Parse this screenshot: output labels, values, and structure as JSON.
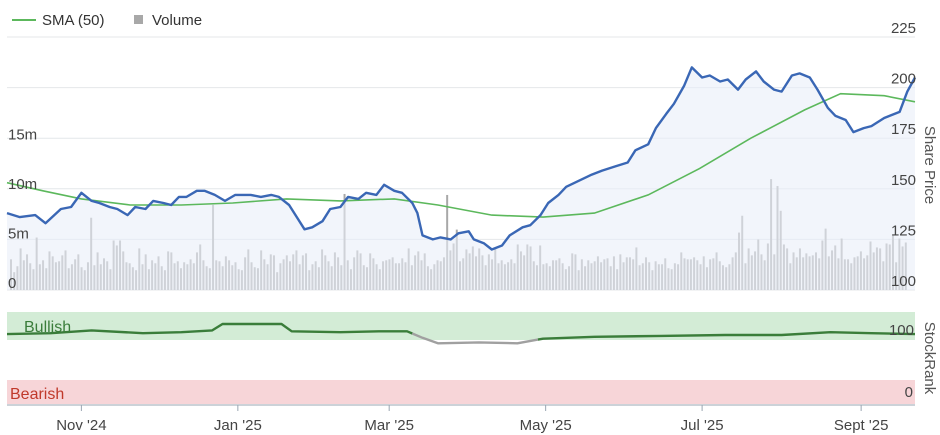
{
  "chart_data": {
    "type": "line",
    "legend": [
      {
        "name": "SMA (50)",
        "color": "#5cb85c",
        "symbol": "line"
      },
      {
        "name": "Volume",
        "color": "#a8a8a8",
        "symbol": "square"
      }
    ],
    "legend_position": "top-left",
    "grid": true,
    "x_range": [
      "2024-10-03",
      "2025-09-22"
    ],
    "x_ticks": [
      {
        "date": "2024-11-01",
        "label": "Nov '24"
      },
      {
        "date": "2025-01-01",
        "label": "Jan '25"
      },
      {
        "date": "2025-03-01",
        "label": "Mar '25"
      },
      {
        "date": "2025-05-01",
        "label": "May '25"
      },
      {
        "date": "2025-07-01",
        "label": "Jul '25"
      },
      {
        "date": "2025-09-01",
        "label": "Sept '25"
      }
    ],
    "price_axis": {
      "title": "Share Price",
      "ylim": [
        100,
        225
      ],
      "ticks": [
        "100",
        "125",
        "150",
        "175",
        "200",
        "225"
      ],
      "side": "right"
    },
    "volume_axis": {
      "ticks": [
        {
          "value": 0,
          "label": "0"
        },
        {
          "value": 5,
          "label": "5m"
        },
        {
          "value": 10,
          "label": "10m"
        },
        {
          "value": 15,
          "label": "15m"
        }
      ],
      "max": 26,
      "side": "left",
      "unit": "m"
    },
    "series": [
      {
        "name": "Share Price",
        "color": "#3a67b5",
        "points": [
          [
            "2024-10-03",
            138
          ],
          [
            "2024-10-08",
            136
          ],
          [
            "2024-10-14",
            137
          ],
          [
            "2024-10-18",
            133
          ],
          [
            "2024-10-24",
            140
          ],
          [
            "2024-10-28",
            141
          ],
          [
            "2024-11-01",
            148
          ],
          [
            "2024-11-05",
            144
          ],
          [
            "2024-11-08",
            143
          ],
          [
            "2024-11-12",
            141
          ],
          [
            "2024-11-15",
            140
          ],
          [
            "2024-11-19",
            137
          ],
          [
            "2024-11-22",
            141
          ],
          [
            "2024-11-26",
            140
          ],
          [
            "2024-11-29",
            144
          ],
          [
            "2024-12-03",
            143
          ],
          [
            "2024-12-06",
            142
          ],
          [
            "2024-12-09",
            146
          ],
          [
            "2024-12-12",
            146
          ],
          [
            "2024-12-16",
            149
          ],
          [
            "2024-12-19",
            149
          ],
          [
            "2024-12-23",
            147
          ],
          [
            "2024-12-27",
            144
          ],
          [
            "2024-12-31",
            147
          ],
          [
            "2025-01-06",
            147
          ],
          [
            "2025-01-10",
            146
          ],
          [
            "2025-01-14",
            147
          ],
          [
            "2025-01-17",
            146
          ],
          [
            "2025-01-21",
            142
          ],
          [
            "2025-01-24",
            136
          ],
          [
            "2025-01-27",
            130
          ],
          [
            "2025-01-30",
            131
          ],
          [
            "2025-02-03",
            134
          ],
          [
            "2025-02-06",
            140
          ],
          [
            "2025-02-10",
            141
          ],
          [
            "2025-02-13",
            146
          ],
          [
            "2025-02-17",
            145
          ],
          [
            "2025-02-20",
            148
          ],
          [
            "2025-02-24",
            147
          ],
          [
            "2025-02-27",
            152
          ],
          [
            "2025-03-03",
            149
          ],
          [
            "2025-03-06",
            148
          ],
          [
            "2025-03-10",
            143
          ],
          [
            "2025-03-12",
            138
          ],
          [
            "2025-03-14",
            127
          ],
          [
            "2025-03-18",
            125
          ],
          [
            "2025-03-21",
            126
          ],
          [
            "2025-03-25",
            125
          ],
          [
            "2025-03-28",
            128
          ],
          [
            "2025-04-01",
            129
          ],
          [
            "2025-04-03",
            125
          ],
          [
            "2025-04-07",
            123
          ],
          [
            "2025-04-10",
            120
          ],
          [
            "2025-04-14",
            122
          ],
          [
            "2025-04-17",
            127
          ],
          [
            "2025-04-22",
            131
          ],
          [
            "2025-04-25",
            132
          ],
          [
            "2025-04-29",
            137
          ],
          [
            "2025-05-02",
            143
          ],
          [
            "2025-05-06",
            147
          ],
          [
            "2025-05-09",
            151
          ],
          [
            "2025-05-14",
            154
          ],
          [
            "2025-05-19",
            157
          ],
          [
            "2025-05-23",
            159
          ],
          [
            "2025-05-28",
            161
          ],
          [
            "2025-06-02",
            163
          ],
          [
            "2025-06-05",
            169
          ],
          [
            "2025-06-10",
            172
          ],
          [
            "2025-06-13",
            180
          ],
          [
            "2025-06-17",
            187
          ],
          [
            "2025-06-20",
            192
          ],
          [
            "2025-06-24",
            201
          ],
          [
            "2025-06-27",
            210
          ],
          [
            "2025-07-01",
            205
          ],
          [
            "2025-07-04",
            206
          ],
          [
            "2025-07-08",
            203
          ],
          [
            "2025-07-11",
            204
          ],
          [
            "2025-07-15",
            199
          ],
          [
            "2025-07-18",
            204
          ],
          [
            "2025-07-22",
            208
          ],
          [
            "2025-07-25",
            203
          ],
          [
            "2025-07-29",
            199
          ],
          [
            "2025-08-01",
            198
          ],
          [
            "2025-08-05",
            206
          ],
          [
            "2025-08-08",
            207
          ],
          [
            "2025-08-12",
            205
          ],
          [
            "2025-08-15",
            199
          ],
          [
            "2025-08-19",
            190
          ],
          [
            "2025-08-22",
            186
          ],
          [
            "2025-08-26",
            184
          ],
          [
            "2025-08-29",
            178
          ],
          [
            "2025-09-02",
            180
          ],
          [
            "2025-09-05",
            181
          ],
          [
            "2025-09-10",
            185
          ],
          [
            "2025-09-16",
            188
          ],
          [
            "2025-09-19",
            198
          ],
          [
            "2025-09-22",
            205
          ]
        ]
      },
      {
        "name": "SMA (50)",
        "color": "#5cb85c",
        "points": [
          [
            "2024-10-03",
            153
          ],
          [
            "2024-10-17",
            149
          ],
          [
            "2024-11-01",
            145
          ],
          [
            "2024-11-20",
            142
          ],
          [
            "2024-12-10",
            142
          ],
          [
            "2024-12-30",
            143
          ],
          [
            "2025-01-20",
            145
          ],
          [
            "2025-02-10",
            144
          ],
          [
            "2025-03-03",
            145
          ],
          [
            "2025-03-20",
            142
          ],
          [
            "2025-04-10",
            137
          ],
          [
            "2025-04-30",
            136
          ],
          [
            "2025-05-20",
            138
          ],
          [
            "2025-06-10",
            147
          ],
          [
            "2025-06-30",
            160
          ],
          [
            "2025-07-20",
            175
          ],
          [
            "2025-08-10",
            189
          ],
          [
            "2025-08-24",
            197
          ],
          [
            "2025-09-10",
            196
          ],
          [
            "2025-09-22",
            193
          ]
        ]
      },
      {
        "name": "Volume",
        "color": "#a8a8a8",
        "unit": "m",
        "values": [
          3.1,
          1.8,
          2.4,
          4.2,
          3.0,
          3.6,
          2.7,
          2.1,
          5.3,
          2.6,
          3.0,
          2.2,
          3.9,
          3.4,
          2.8,
          2.9,
          3.5,
          4.0,
          2.2,
          2.6,
          3.1,
          3.6,
          2.3,
          2.0,
          2.8,
          7.3,
          2.5,
          3.8,
          2.6,
          3.2,
          2.9,
          2.1,
          5.0,
          4.5,
          5.0,
          3.9,
          2.8,
          2.7,
          2.3,
          2.0,
          4.2,
          2.6,
          3.6,
          2.1,
          3.0,
          2.7,
          3.4,
          2.4,
          2.0,
          3.9,
          3.8,
          2.7,
          2.9,
          2.2,
          2.8,
          2.6,
          3.1,
          2.7,
          3.8,
          4.6,
          3.0,
          2.4,
          2.2,
          8.6,
          3.0,
          2.9,
          2.4,
          3.4,
          3.0,
          2.5,
          2.8,
          2.1,
          2.0,
          3.3,
          4.1,
          2.8,
          2.3,
          2.2,
          4.0,
          3.1,
          2.6,
          3.6,
          3.5,
          1.8,
          2.7,
          3.1,
          3.5,
          2.9,
          3.6,
          4.0,
          2.6,
          3.5,
          3.7,
          2.0,
          2.6,
          2.9,
          2.3,
          4.1,
          3.5,
          2.9,
          2.4,
          3.8,
          3.3,
          2.5,
          9.7,
          3.0,
          2.1,
          3.3,
          4.0,
          3.7,
          2.5,
          2.3,
          3.7,
          3.2,
          2.6,
          2.1,
          2.9,
          3.0,
          3.1,
          3.3,
          2.7,
          2.7,
          3.2,
          2.8,
          4.2,
          2.5,
          3.5,
          3.9,
          3.0,
          3.7,
          2.4,
          2.1,
          2.6,
          3.0,
          2.9,
          3.3,
          9.6,
          4.0,
          4.7,
          6.1,
          2.9,
          3.2,
          4.1,
          3.7,
          4.4,
          3.4,
          4.2,
          3.5,
          2.5,
          3.6,
          3.1,
          4.3,
          2.7,
          3.0,
          2.6,
          2.8,
          3.1,
          2.7,
          4.6,
          3.9,
          3.5,
          4.6,
          4.4,
          2.9,
          2.5,
          4.5,
          2.6,
          2.7,
          2.4,
          3.0,
          3.0,
          3.2,
          2.7,
          2.1,
          2.4,
          3.7,
          3.6,
          2.0,
          3.1,
          2.4,
          3.0,
          2.7,
          2.9,
          3.4,
          2.8,
          3.1,
          3.2,
          2.4,
          3.4,
          2.1,
          3.6,
          2.8,
          3.3,
          3.3,
          3.1,
          4.3,
          2.5,
          2.7,
          3.3,
          2.8,
          2.0,
          2.9,
          2.6,
          2.6,
          3.2,
          2.2,
          2.1,
          2.7,
          2.6,
          3.8,
          3.2,
          3.1,
          3.1,
          3.3,
          3.0,
          2.6,
          3.4,
          2.3,
          3.1,
          3.2,
          3.8,
          2.9,
          2.5,
          2.3,
          2.6,
          3.3,
          3.8,
          5.8,
          7.5,
          2.7,
          4.2,
          3.5,
          3.9,
          5.1,
          3.6,
          3.0,
          4.7,
          11.2,
          3.6,
          10.5,
          8.0,
          4.6,
          4.2,
          2.7,
          3.8,
          3.3,
          4.2,
          3.3,
          3.7,
          3.4,
          3.5,
          3.8,
          3.2,
          5.0,
          6.2,
          3.4,
          4.0,
          4.5,
          3.2,
          5.2,
          3.1,
          3.1,
          2.7,
          3.3,
          3.4,
          3.9,
          3.2,
          3.5,
          4.9,
          3.8,
          4.3,
          4.2,
          2.9,
          4.7,
          4.6,
          5.5,
          2.8,
          5.2,
          4.4,
          4.8
        ]
      },
      {
        "name": "StockRank",
        "states": [
          {
            "from": "2024-10-03",
            "to": "2025-03-10",
            "state": "Bullish",
            "color": "#3a7d3a"
          },
          {
            "from": "2025-03-10",
            "to": "2025-04-28",
            "state": "Neutral",
            "color": "#a0a0a0"
          },
          {
            "from": "2025-04-28",
            "to": "2025-09-22",
            "state": "Bullish",
            "color": "#3a7d3a"
          }
        ],
        "points": [
          [
            "2024-10-03",
            76
          ],
          [
            "2024-10-20",
            77
          ],
          [
            "2024-11-05",
            80
          ],
          [
            "2024-11-25",
            77
          ],
          [
            "2024-12-10",
            78
          ],
          [
            "2024-12-22",
            80
          ],
          [
            "2024-12-26",
            87
          ],
          [
            "2025-01-18",
            87
          ],
          [
            "2025-01-22",
            79
          ],
          [
            "2025-02-10",
            78
          ],
          [
            "2025-02-25",
            79
          ],
          [
            "2025-03-08",
            79
          ],
          [
            "2025-03-14",
            72
          ],
          [
            "2025-03-20",
            66
          ],
          [
            "2025-04-05",
            67
          ],
          [
            "2025-04-20",
            66
          ],
          [
            "2025-04-30",
            71
          ],
          [
            "2025-05-20",
            73
          ],
          [
            "2025-06-15",
            74
          ],
          [
            "2025-07-10",
            75
          ],
          [
            "2025-08-01",
            75
          ],
          [
            "2025-08-20",
            78
          ],
          [
            "2025-09-05",
            77
          ],
          [
            "2025-09-22",
            76
          ]
        ]
      }
    ],
    "rank_axis": {
      "title": "StockRank",
      "max_label": "100",
      "min_label": "0"
    },
    "bands": {
      "bullish_label": "Bullish",
      "bearish_label": "Bearish"
    }
  }
}
